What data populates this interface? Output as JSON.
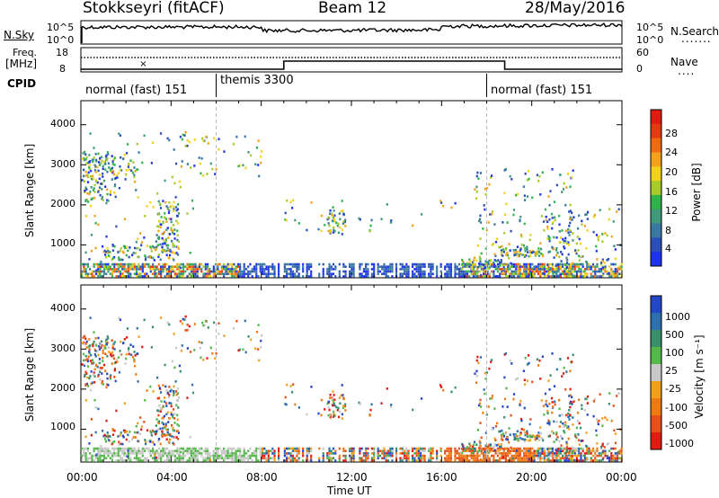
{
  "header": {
    "station": "Stokkseyri (fitACF)",
    "beam": "Beam 12",
    "date": "28/May/2016"
  },
  "noise_panel": {
    "left_label": "N.Sky",
    "right_label": "N.Search",
    "left_ticks": [
      "10^5",
      "10^0"
    ],
    "right_ticks": [
      "10^5",
      "10^0"
    ]
  },
  "freq_panel": {
    "left_label_1": "Freq.",
    "left_label_2": "[MHz]",
    "left_ticks": [
      "18",
      "8"
    ],
    "right_label": "Nave",
    "right_ticks": [
      "60",
      "0"
    ]
  },
  "cpid": {
    "label": "CPID",
    "segments": [
      {
        "name": "normal (fast) 151",
        "start_h": 0,
        "end_h": 6
      },
      {
        "name": "themis 3300",
        "start_h": 6,
        "end_h": 18
      },
      {
        "name": "normal (fast) 151",
        "start_h": 18,
        "end_h": 24
      }
    ]
  },
  "chart_data": [
    {
      "type": "heatmap",
      "quantity": "power",
      "ylabel": "Slant Range [km]",
      "yticks": [
        "1000",
        "2000",
        "3000",
        "4000"
      ],
      "ylim": [
        180,
        4600
      ],
      "xlim": [
        0,
        24
      ],
      "colorbar": {
        "label": "Power [dB]",
        "ticks": [
          "4",
          "8",
          "12",
          "16",
          "20",
          "24",
          "28"
        ],
        "colors": [
          "#1d33f0",
          "#2b4fb8",
          "#3a78a4",
          "#3f9a7a",
          "#2fb34a",
          "#a7cc2a",
          "#f2d21b",
          "#f2a11a",
          "#ee6b12",
          "#e43a12",
          "#e01b14"
        ]
      }
    },
    {
      "type": "heatmap",
      "quantity": "velocity",
      "ylabel": "Slant Range [km]",
      "yticks": [
        "1000",
        "2000",
        "3000",
        "4000"
      ],
      "ylim": [
        180,
        4600
      ],
      "xlim": [
        0,
        24
      ],
      "xlabel": "Time UT",
      "xticks": [
        "00:00",
        "04:00",
        "08:00",
        "12:00",
        "16:00",
        "20:00",
        "00:00"
      ],
      "colorbar": {
        "label": "Velocity [m s⁻¹]",
        "ticks": [
          "1000",
          "500",
          "100",
          "25",
          "-25",
          "-100",
          "-500",
          "-1000"
        ],
        "colors": [
          "#2447c8",
          "#2e6fae",
          "#3a8e6a",
          "#55b84a",
          "#c8c8c8",
          "#f0a01a",
          "#ee7a12",
          "#e8501a",
          "#e01b14"
        ]
      }
    }
  ]
}
